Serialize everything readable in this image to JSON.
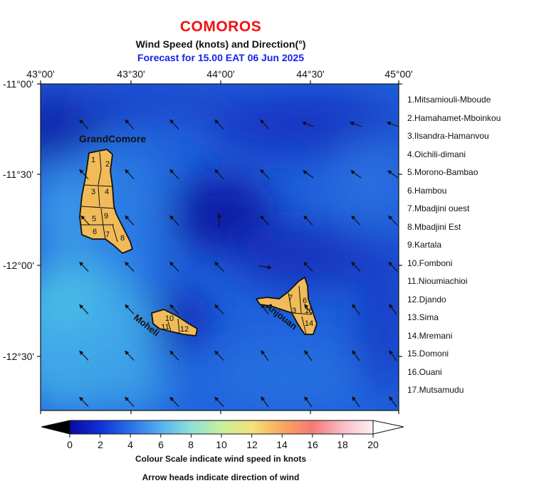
{
  "header": {
    "title": "COMOROS",
    "subtitle": "Wind Speed (knots) and Direction(°)",
    "forecast": "Forecast for  15.00 EAT 06 Jun 2025"
  },
  "axes": {
    "longitude_labels": [
      "43°00'",
      "43°30'",
      "44°00'",
      "44°30'",
      "45°00'"
    ],
    "latitude_labels": [
      "-11°00'",
      "-11°30'",
      "-12°00'",
      "-12°30'"
    ]
  },
  "islands": {
    "grand_comore": "GrandComore",
    "moheli": "Moheli",
    "anjouan": "Anjouan"
  },
  "districts": [
    "1.Mitsamiouli-Mboude",
    "2.Hamahamet-Mboinkou",
    "3.Ilsandra-Hamanvou",
    "4.Oichili-dimani",
    "5.Morono-Bambao",
    "6.Hambou",
    "7.Mbadjini ouest",
    "8.Mbadjini Est",
    "9.Kartala",
    "10.Fomboni",
    "11.Nioumiachioi",
    "12.Djando",
    "13.Sima",
    "14.Mremani",
    "15.Domoni",
    "16.Ouani",
    "17.Mutsamudu"
  ],
  "colorbar": {
    "ticks": [
      "0",
      "2",
      "4",
      "6",
      "8",
      "10",
      "12",
      "14",
      "16",
      "18",
      "20"
    ],
    "caption1": "Colour Scale indicate wind speed in knots",
    "caption2": "Arrow heads indicate direction of wind"
  },
  "district_numbers": {
    "grand_comore": [
      "1",
      "2",
      "3",
      "4",
      "5",
      "9",
      "6",
      "7",
      "8"
    ],
    "moheli": [
      "10",
      "11",
      "12"
    ],
    "anjouan": [
      "7",
      "6",
      "3",
      "15",
      "14"
    ]
  }
}
